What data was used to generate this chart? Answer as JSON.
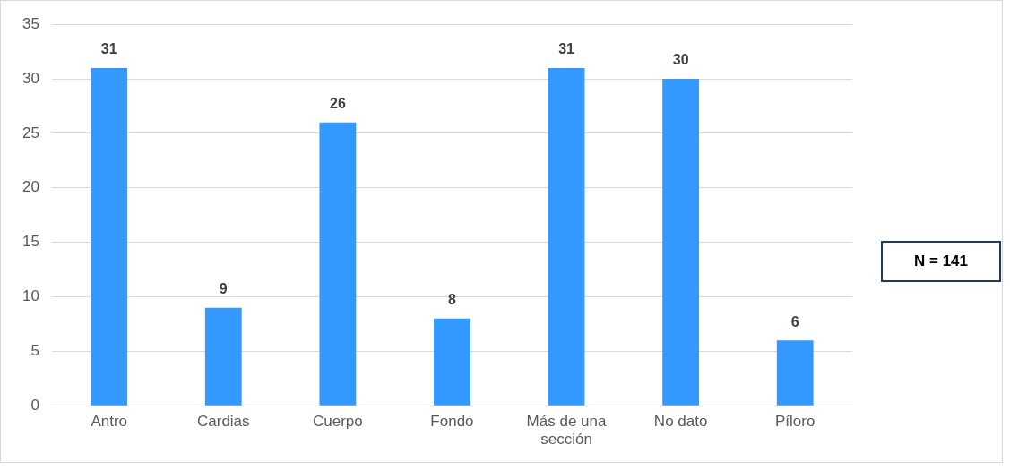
{
  "chart_data": {
    "type": "bar",
    "categories": [
      "Antro",
      "Cardias",
      "Cuerpo",
      "Fondo",
      "Más de una sección",
      "No dato",
      "Píloro"
    ],
    "values": [
      31,
      9,
      26,
      8,
      31,
      30,
      6
    ],
    "color": "#3399ff",
    "ylim": [
      0,
      35
    ],
    "yticks": [
      0,
      5,
      10,
      15,
      20,
      25,
      30,
      35
    ],
    "grid": "y",
    "data_labels": true,
    "legend": false,
    "annotations": [
      "N = 141"
    ]
  }
}
